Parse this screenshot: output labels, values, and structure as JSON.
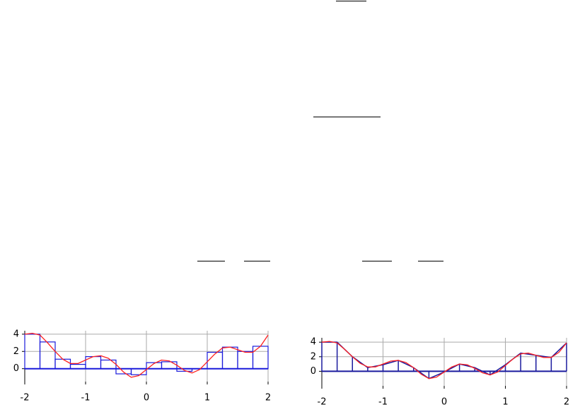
{
  "chart_data": [
    {
      "type": "histogram",
      "bins": [
        -2,
        -1.75,
        -1.5,
        -1.25,
        -1,
        -0.75,
        -0.5,
        -0.25,
        0,
        0.25,
        0.5,
        0.75,
        1,
        1.25,
        1.5,
        1.75,
        2
      ],
      "values": [
        4.0,
        3.1,
        1.1,
        0.5,
        1.4,
        1.0,
        -0.6,
        -0.7,
        0.7,
        0.8,
        -0.3,
        0,
        1.9,
        2.5,
        2.0,
        2.6
      ],
      "color": "#1a1adb",
      "curve": {
        "color": "#ff2020",
        "x": [
          -2,
          -1.875,
          -1.75,
          -1.625,
          -1.5,
          -1.375,
          -1.25,
          -1.125,
          -1,
          -0.875,
          -0.75,
          -0.625,
          -0.5,
          -0.375,
          -0.25,
          -0.125,
          0,
          0.125,
          0.25,
          0.375,
          0.5,
          0.625,
          0.75,
          0.875,
          1,
          1.125,
          1.25,
          1.375,
          1.5,
          1.625,
          1.75,
          1.875,
          2
        ],
        "values": [
          4.0,
          4.1,
          3.9,
          3.0,
          2.0,
          1.1,
          0.6,
          0.6,
          1.0,
          1.4,
          1.5,
          1.2,
          0.5,
          -0.4,
          -1.0,
          -0.8,
          -0.1,
          0.6,
          1.0,
          0.9,
          0.4,
          -0.2,
          -0.5,
          -0.1,
          0.8,
          1.7,
          2.4,
          2.5,
          2.2,
          1.9,
          1.9,
          2.6,
          3.9
        ]
      },
      "xlim": [
        -2,
        2
      ],
      "ylim": [
        -1.5,
        4.4
      ],
      "xticks": [
        -2,
        -1,
        0,
        1,
        2
      ],
      "yticks": [
        0,
        2,
        4
      ],
      "grid": true
    },
    {
      "type": "stem",
      "x": [
        -2,
        -1.75,
        -1.5,
        -1.25,
        -1,
        -0.75,
        -0.5,
        -0.25,
        0,
        0.25,
        0.5,
        0.75,
        1,
        1.25,
        1.5,
        1.75,
        2
      ],
      "values": [
        4.0,
        4.0,
        2.0,
        0.5,
        0.9,
        1.5,
        0.5,
        -1.0,
        -0.1,
        1.0,
        0.5,
        -0.5,
        0.9,
        2.5,
        2.2,
        1.9,
        3.9
      ],
      "color": "#1a1a9e",
      "curve": {
        "color": "#ff2020",
        "x": [
          -2,
          -1.875,
          -1.75,
          -1.625,
          -1.5,
          -1.375,
          -1.25,
          -1.125,
          -1,
          -0.875,
          -0.75,
          -0.625,
          -0.5,
          -0.375,
          -0.25,
          -0.125,
          0,
          0.125,
          0.25,
          0.375,
          0.5,
          0.625,
          0.75,
          0.875,
          1,
          1.125,
          1.25,
          1.375,
          1.5,
          1.625,
          1.75,
          1.875,
          2
        ],
        "values": [
          4.0,
          4.1,
          3.9,
          3.0,
          2.0,
          1.1,
          0.6,
          0.6,
          1.0,
          1.4,
          1.5,
          1.2,
          0.5,
          -0.4,
          -1.0,
          -0.8,
          -0.1,
          0.6,
          1.0,
          0.9,
          0.4,
          -0.2,
          -0.5,
          -0.1,
          0.8,
          1.7,
          2.4,
          2.5,
          2.2,
          1.9,
          1.9,
          2.6,
          3.9
        ]
      },
      "xlim": [
        -2,
        2
      ],
      "ylim": [
        -2.0,
        4.6
      ],
      "xticks": [
        -2,
        -1,
        0,
        1,
        2
      ],
      "yticks": [
        0,
        2,
        4
      ],
      "grid": true
    }
  ]
}
